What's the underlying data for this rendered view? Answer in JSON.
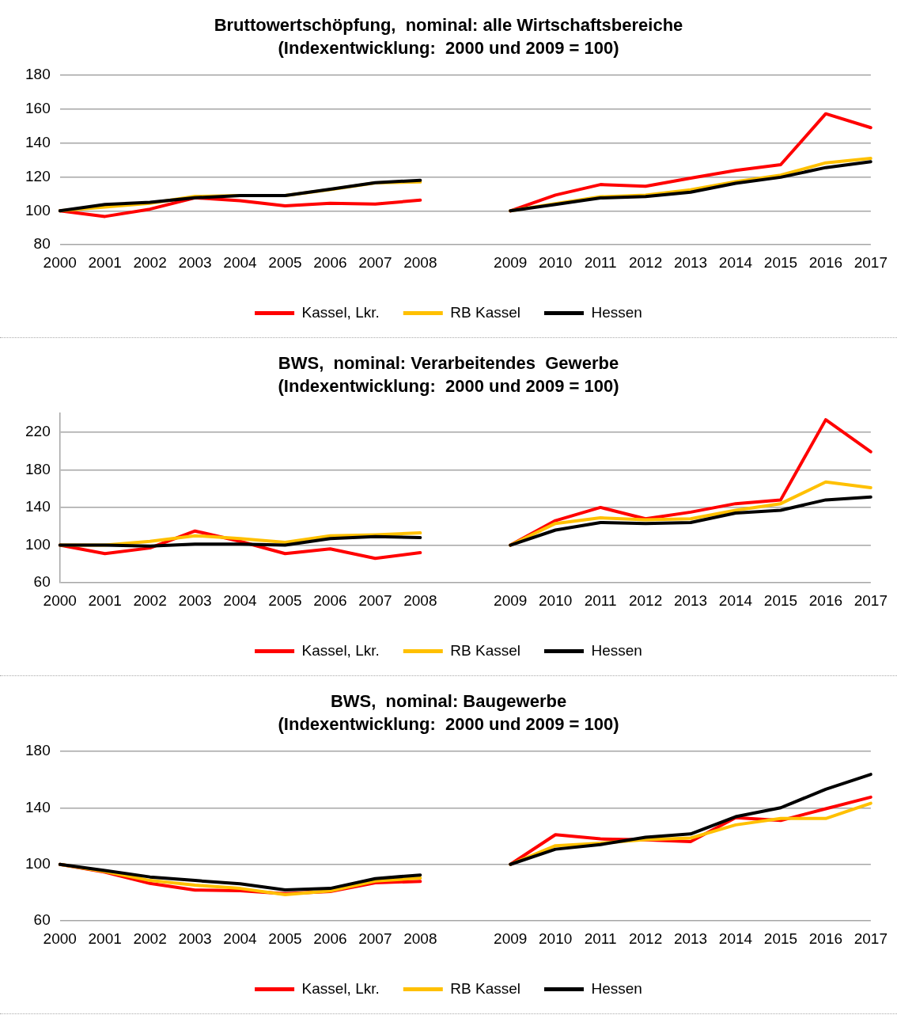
{
  "chart_data": [
    {
      "type": "line",
      "title": "Bruttowertschöpfung,  nominal: alle Wirtschaftsbereiche",
      "subtitle": "(Indexentwicklung:  2000 und 2009 = 100)",
      "categories": [
        "2000",
        "2001",
        "2002",
        "2003",
        "2004",
        "2005",
        "2006",
        "2007",
        "2008",
        null,
        "2009",
        "2010",
        "2011",
        "2012",
        "2013",
        "2014",
        "2015",
        "2016",
        "2017"
      ],
      "series": [
        {
          "name": "Kassel, Lkr.",
          "color": "#ff0000",
          "values": [
            100,
            96.7,
            101,
            107.7,
            106,
            103,
            104.5,
            104,
            106.3,
            null,
            100,
            109.3,
            115.5,
            114.5,
            119.3,
            123.8,
            127.2,
            157.2,
            149
          ]
        },
        {
          "name": "RB Kassel",
          "color": "#ffc000",
          "values": [
            100,
            102.3,
            104.5,
            108.5,
            109,
            109,
            112.5,
            116.5,
            117,
            null,
            100,
            104.3,
            108.3,
            109.3,
            112.4,
            117.2,
            121,
            128.3,
            130.9
          ]
        },
        {
          "name": "Hessen",
          "color": "#000000",
          "values": [
            100,
            103.8,
            105,
            107.7,
            109,
            109,
            112.7,
            116.6,
            118,
            null,
            100,
            103.8,
            107.6,
            108.4,
            111,
            116.2,
            119.8,
            125.5,
            129
          ]
        }
      ],
      "ylim": [
        80,
        180
      ],
      "yticks": [
        80,
        100,
        120,
        140,
        160,
        180
      ],
      "grid": "y",
      "legend": "bottom"
    },
    {
      "type": "line",
      "title": "BWS,  nominal: Verarbeitendes  Gewerbe",
      "subtitle": "(Indexentwicklung:  2000 und 2009 = 100)",
      "categories": [
        "2000",
        "2001",
        "2002",
        "2003",
        "2004",
        "2005",
        "2006",
        "2007",
        "2008",
        null,
        "2009",
        "2010",
        "2011",
        "2012",
        "2013",
        "2014",
        "2015",
        "2016",
        "2017"
      ],
      "series": [
        {
          "name": "Kassel, Lkr.",
          "color": "#ff0000",
          "values": [
            100,
            91,
            97,
            115,
            104,
            91,
            96,
            86,
            92,
            null,
            100,
            126,
            140,
            128,
            135,
            144,
            148,
            233,
            199
          ]
        },
        {
          "name": "RB Kassel",
          "color": "#ffc000",
          "values": [
            100,
            100,
            104,
            110,
            107,
            103,
            110,
            111,
            113,
            null,
            100,
            123,
            129,
            127,
            128,
            137,
            144,
            167,
            161
          ]
        },
        {
          "name": "Hessen",
          "color": "#000000",
          "values": [
            100,
            100,
            99,
            101,
            101,
            100,
            107,
            109,
            108,
            null,
            100,
            116,
            124,
            123,
            124,
            134,
            137,
            148,
            151
          ]
        }
      ],
      "ylim": [
        60,
        240
      ],
      "yticks": [
        60,
        100,
        140,
        180,
        220
      ],
      "grid": "y",
      "legend": "bottom"
    },
    {
      "type": "line",
      "title": "BWS,  nominal: Baugewerbe",
      "subtitle": "(Indexentwicklung:  2000 und 2009 = 100)",
      "categories": [
        "2000",
        "2001",
        "2002",
        "2003",
        "2004",
        "2005",
        "2006",
        "2007",
        "2008",
        null,
        "2009",
        "2010",
        "2011",
        "2012",
        "2013",
        "2014",
        "2015",
        "2016",
        "2017"
      ],
      "series": [
        {
          "name": "Kassel, Lkr.",
          "color": "#ff0000",
          "values": [
            100,
            94.5,
            86.5,
            81.8,
            81.4,
            79.3,
            80.8,
            87,
            88,
            null,
            100,
            121,
            118,
            117.4,
            116.1,
            133,
            131,
            139.3,
            147.5
          ]
        },
        {
          "name": "RB Kassel",
          "color": "#ffc000",
          "values": [
            100,
            95,
            88.6,
            85.3,
            83,
            78.6,
            81.2,
            88.2,
            90.3,
            null,
            100,
            113.2,
            115,
            117.5,
            118.6,
            127.9,
            132.4,
            132.4,
            143.2
          ]
        },
        {
          "name": "Hessen",
          "color": "#000000",
          "values": [
            100,
            95.6,
            91.1,
            88.6,
            86.3,
            82,
            83,
            89.9,
            92.5,
            null,
            100,
            110.7,
            114,
            119.2,
            121.5,
            133.7,
            140,
            153.1,
            163.6
          ]
        }
      ],
      "ylim": [
        60,
        180
      ],
      "yticks": [
        60,
        100,
        140,
        180
      ],
      "grid": "y",
      "legend": "bottom"
    }
  ]
}
